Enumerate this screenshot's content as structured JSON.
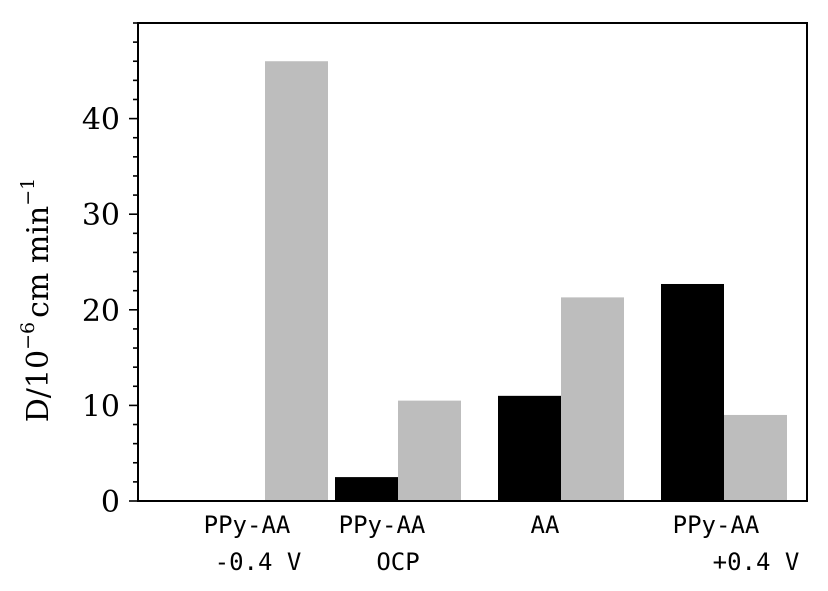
{
  "chart_data": {
    "type": "bar",
    "title": "",
    "xlabel": "",
    "ylabel": {
      "base": "D/10",
      "exp1": "−6",
      "unit": "cm min",
      "exp2": "−1"
    },
    "categories": [
      {
        "line1": "PPy-AA",
        "line2": "-0.4 V"
      },
      {
        "line1": "PPy-AA",
        "line2": "OCP"
      },
      {
        "line1": "AA",
        "line2": ""
      },
      {
        "line1": "PPy-AA",
        "line2": "+0.4 V"
      }
    ],
    "series": [
      {
        "color": "#000000",
        "values": [
          0,
          2.5,
          11.0,
          22.7
        ]
      },
      {
        "color": "#bdbdbd",
        "values": [
          46.0,
          10.5,
          21.3,
          9.0
        ]
      }
    ],
    "ylim": [
      0,
      50
    ],
    "yticks": [
      0,
      10,
      20,
      30,
      40
    ],
    "yminor_step": 2,
    "grid": false,
    "legend": "none"
  }
}
